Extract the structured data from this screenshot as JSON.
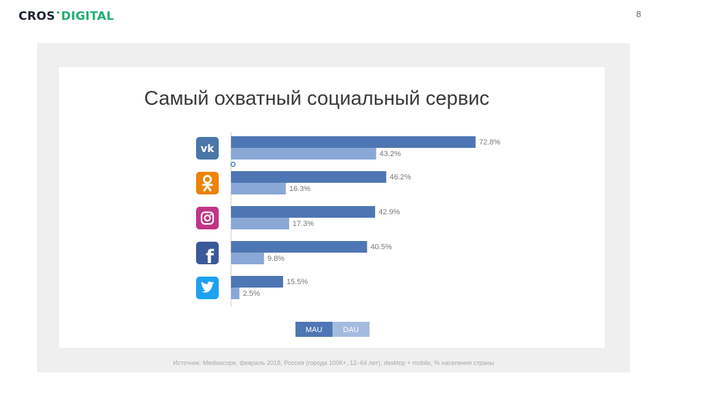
{
  "header": {
    "logo_part1": "CROS",
    "logo_part2": "DIGITAL",
    "page_number": "8"
  },
  "footer": {
    "source": "Источник: Mediascope, февраль 2018, Россия (города 100К+, 12–64 лет), desktop + mobile, % населения страны"
  },
  "colors": {
    "mau": "#4f76b4",
    "dau": "#8aa8d6",
    "toggle_inactive": "#a3bbdf",
    "vk": "#4a76a8",
    "ok": "#ee8208",
    "instagram": "#c13584",
    "facebook": "#3b5998",
    "twitter": "#1da1f2"
  },
  "chart_data": {
    "type": "bar",
    "orientation": "horizontal",
    "title": "Самый охватный социальный сервис",
    "categories": [
      "ВКонтакте",
      "Одноклассники",
      "Instagram",
      "Facebook",
      "Twitter"
    ],
    "category_icons": [
      "vk-icon",
      "ok-icon",
      "instagram-icon",
      "facebook-icon",
      "twitter-icon"
    ],
    "series": [
      {
        "name": "MAU",
        "values": [
          72.8,
          46.2,
          42.9,
          40.5,
          15.5
        ],
        "labels": [
          "72.8%",
          "46.2%",
          "42.9%",
          "40.5%",
          "15.5%"
        ]
      },
      {
        "name": "DAU",
        "values": [
          43.2,
          16.3,
          17.3,
          9.8,
          2.5
        ],
        "labels": [
          "43.2%",
          "16.3%",
          "17.3%",
          "9.8%",
          "2.5%"
        ]
      }
    ],
    "legend": "bottom-center",
    "grid": false
  }
}
